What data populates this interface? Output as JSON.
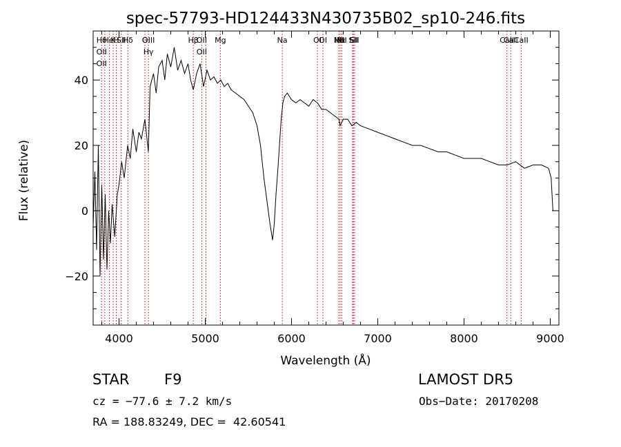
{
  "chart_data": {
    "type": "line",
    "title": "spec-57793-HD124433N430735B02_sp10-246.fits",
    "xlabel": "Wavelength (Å)",
    "ylabel": "Flux (relative)",
    "xlim": [
      3700,
      9100
    ],
    "ylim": [
      -35,
      55
    ],
    "x_ticks": [
      4000,
      5000,
      6000,
      7000,
      8000,
      9000
    ],
    "y_ticks": [
      -20,
      0,
      20,
      40
    ],
    "grid": false,
    "line_color": "#000000",
    "marker_color": "#cc0000",
    "series": [
      {
        "x": [
          3700,
          3720,
          3740,
          3760,
          3780,
          3800,
          3820,
          3840,
          3860,
          3880,
          3900,
          3920,
          3950,
          3980,
          4000,
          4030,
          4060,
          4100,
          4130,
          4160,
          4200,
          4230,
          4260,
          4300,
          4340,
          4360,
          4400,
          4430,
          4460,
          4500,
          4530,
          4560,
          4600,
          4640,
          4680,
          4720,
          4760,
          4800,
          4830,
          4861,
          4900,
          4940,
          4980,
          5020,
          5060,
          5100,
          5140,
          5180,
          5220,
          5260,
          5300,
          5350,
          5400,
          5450,
          5500,
          5550,
          5600,
          5640,
          5680,
          5720,
          5750,
          5780,
          5800,
          5820,
          5840,
          5860,
          5880,
          5900,
          5920,
          5950,
          6000,
          6050,
          6100,
          6150,
          6200,
          6250,
          6300,
          6350,
          6400,
          6450,
          6500,
          6550,
          6563,
          6600,
          6650,
          6700,
          6750,
          6800,
          6900,
          7000,
          7100,
          7200,
          7300,
          7400,
          7500,
          7600,
          7700,
          7800,
          7900,
          8000,
          8100,
          8200,
          8300,
          8400,
          8500,
          8600,
          8700,
          8800,
          8900,
          8980,
          9010,
          9030,
          9050
        ],
        "y": [
          -5,
          12,
          -12,
          20,
          -20,
          8,
          -15,
          5,
          -18,
          0,
          -10,
          2,
          -8,
          5,
          8,
          15,
          10,
          20,
          16,
          25,
          18,
          24,
          22,
          28,
          18,
          38,
          42,
          36,
          44,
          46,
          40,
          48,
          44,
          50,
          43,
          46,
          42,
          45,
          40,
          37,
          42,
          45,
          38,
          43,
          40,
          41,
          39,
          40,
          38,
          39,
          37,
          36,
          35,
          34,
          32,
          30,
          26,
          20,
          10,
          2,
          -4,
          -9,
          -4,
          5,
          12,
          20,
          28,
          33,
          35,
          36,
          34,
          33,
          34,
          33,
          32,
          34,
          33,
          31,
          31,
          30,
          29,
          28,
          26,
          28,
          28,
          26,
          27,
          26,
          25,
          24,
          23,
          22,
          21,
          20,
          20,
          19,
          18,
          18,
          17,
          16,
          16,
          16,
          15,
          14,
          14,
          15,
          13,
          14,
          14,
          13,
          10,
          0,
          0
        ]
      }
    ],
    "lines": [
      {
        "x": 3798,
        "labels": [
          "Hθ",
          "OII",
          "OII"
        ]
      },
      {
        "x": 3835,
        "labels": []
      },
      {
        "x": 3889,
        "labels": [
          "Hel"
        ]
      },
      {
        "x": 3933,
        "labels": [
          "K"
        ]
      },
      {
        "x": 3968,
        "labels": [
          "H"
        ]
      },
      {
        "x": 4026,
        "labels": [
          "SII"
        ]
      },
      {
        "x": 4102,
        "labels": [
          "Hδ"
        ]
      },
      {
        "x": 4300,
        "labels": [
          "G"
        ]
      },
      {
        "x": 4341,
        "labels": [
          "OIII",
          "Hγ"
        ]
      },
      {
        "x": 4861,
        "labels": [
          "Hβ"
        ]
      },
      {
        "x": 4959,
        "labels": [
          "OII",
          "OII"
        ]
      },
      {
        "x": 5007,
        "labels": []
      },
      {
        "x": 5175,
        "labels": [
          "Mg"
        ]
      },
      {
        "x": 5893,
        "labels": [
          "Na"
        ]
      },
      {
        "x": 6300,
        "labels": [
          "OI"
        ]
      },
      {
        "x": 6364,
        "labels": [
          "OI"
        ]
      },
      {
        "x": 6548,
        "labels": [
          "NII"
        ]
      },
      {
        "x": 6563,
        "labels": [
          "Hα"
        ]
      },
      {
        "x": 6583,
        "labels": [
          "NII"
        ]
      },
      {
        "x": 6708,
        "labels": [
          "Li"
        ]
      },
      {
        "x": 6717,
        "labels": [
          "SII"
        ]
      },
      {
        "x": 6731,
        "labels": [
          "SII"
        ]
      },
      {
        "x": 8498,
        "labels": [
          "CaII"
        ]
      },
      {
        "x": 8542,
        "labels": [
          "CaII"
        ]
      },
      {
        "x": 8662,
        "labels": [
          "CaII"
        ]
      }
    ]
  },
  "info": {
    "class": "STAR",
    "subclass": "F9",
    "survey": "LAMOST DR5",
    "cz": "cz = −77.6 ± 7.2 km/s",
    "obs_date": "Obs−Date: 20170208",
    "coords": "RA = 188.83249, DEC =  42.60541"
  }
}
